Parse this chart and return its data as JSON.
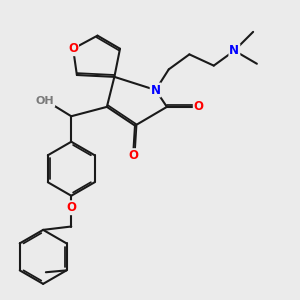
{
  "background_color": "#ebebeb",
  "bond_color": "#1a1a1a",
  "bond_width": 1.5,
  "atom_colors": {
    "O": "#ff0000",
    "N": "#0000ff",
    "H": "#7a7a7a",
    "C": "#1a1a1a"
  },
  "font_size": 8.5
}
